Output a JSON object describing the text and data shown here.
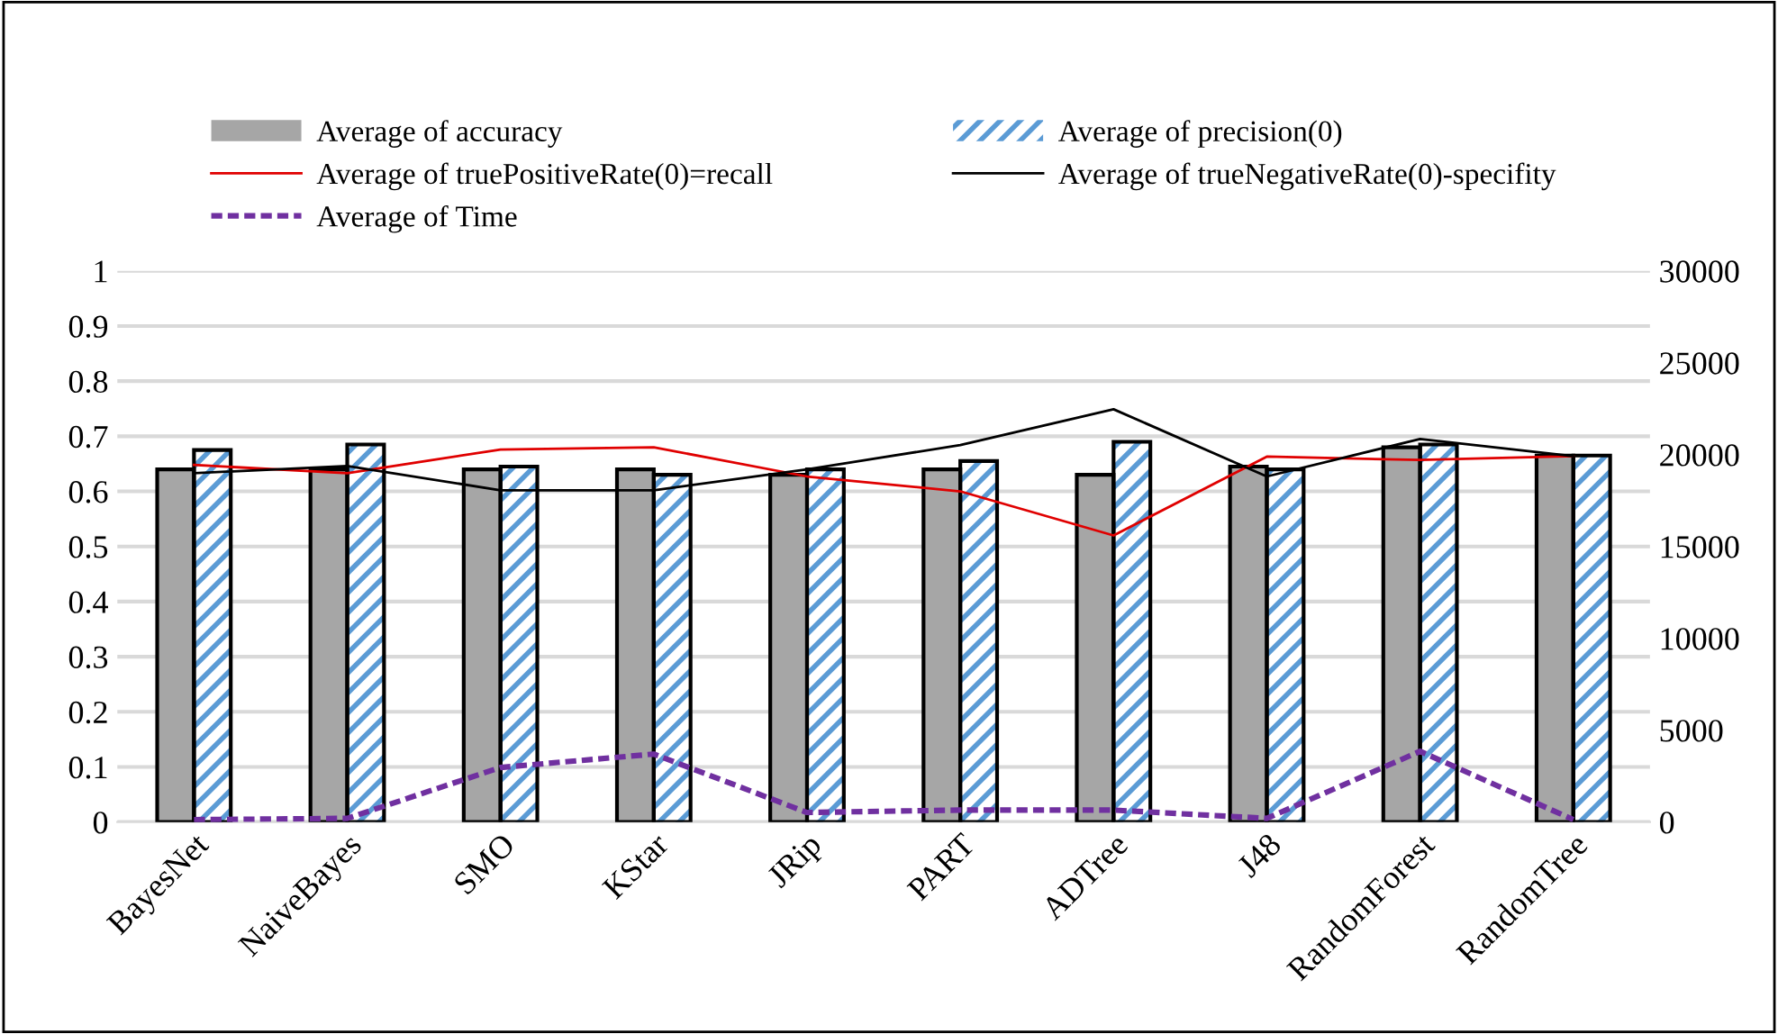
{
  "chart_data": {
    "type": "bar",
    "categories": [
      "BayesNet",
      "NaiveBayes",
      "SMO",
      "KStar",
      "JRip",
      "PART",
      "ADTree",
      "J48",
      "RandomForest",
      "RandomTree"
    ],
    "series": [
      {
        "name": "Average of accuracy",
        "color": "#a6a6a6",
        "values": [
          0.64,
          0.64,
          0.64,
          0.64,
          0.63,
          0.64,
          0.63,
          0.645,
          0.68,
          0.665
        ]
      },
      {
        "name": "Average of truePositiveRate(0)=recall",
        "type": "line",
        "color": "#e00000",
        "values": [
          0.648,
          0.633,
          0.676,
          0.68,
          0.627,
          0.6,
          0.52,
          0.663,
          0.657,
          0.664
        ]
      },
      {
        "name": "Average of Time",
        "type": "line",
        "axis": "y2",
        "line_style": "dashed",
        "color": "#7030a0",
        "values": [
          130,
          200,
          2970,
          3700,
          520,
          650,
          650,
          200,
          3850,
          130
        ]
      },
      {
        "name": "Average of precision(0)",
        "color": "#5b9bd5",
        "values": [
          0.675,
          0.685,
          0.645,
          0.63,
          0.64,
          0.655,
          0.69,
          0.64,
          0.685,
          0.665
        ]
      },
      {
        "name": "Average of trueNegativeRate(0)-specifity",
        "type": "line",
        "color": "#000000",
        "values": [
          0.633,
          0.646,
          0.602,
          0.602,
          0.64,
          0.684,
          0.749,
          0.627,
          0.695,
          0.664
        ]
      }
    ],
    "ylim": [
      0,
      1
    ],
    "yticks": [
      0,
      0.1,
      0.2,
      0.3,
      0.4,
      0.5,
      0.6,
      0.7,
      0.8,
      0.9,
      1
    ],
    "y2lim": [
      0,
      30000
    ],
    "y2ticks": [
      0,
      5000,
      10000,
      15000,
      20000,
      25000,
      30000
    ],
    "grid": "y",
    "legend": "top"
  }
}
